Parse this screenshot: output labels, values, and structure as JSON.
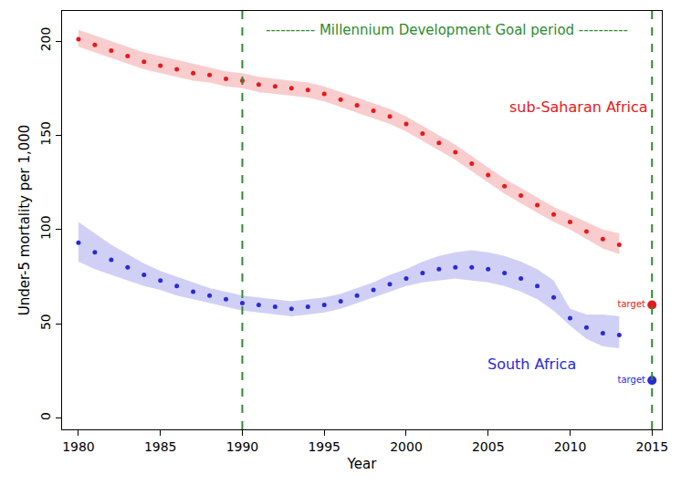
{
  "chart_data": {
    "type": "scatter",
    "marker": "circle",
    "grid": false,
    "x_label": "Year",
    "y_label": "Under-5 mortality per 1,000",
    "xlim": [
      1979,
      2015.6
    ],
    "xticks": [
      1980,
      1985,
      1990,
      1995,
      2000,
      2005,
      2010,
      2015
    ],
    "ylim": [
      -6,
      216
    ],
    "yticks": [
      0,
      50,
      100,
      150,
      200
    ],
    "x": [
      1980,
      1981,
      1982,
      1983,
      1984,
      1985,
      1986,
      1987,
      1988,
      1989,
      1990,
      1991,
      1992,
      1993,
      1994,
      1995,
      1996,
      1997,
      1998,
      1999,
      2000,
      2001,
      2002,
      2003,
      2004,
      2005,
      2006,
      2007,
      2008,
      2009,
      2010,
      2011,
      2012,
      2013
    ],
    "period": {
      "label": "---------- Millennium Development Goal period ----------",
      "start": 1990,
      "end": 2015,
      "color": "#2e8b2e",
      "line_style": "dash"
    },
    "series": [
      {
        "name": "sub-Saharan Africa",
        "color": "#e41a1c",
        "values": [
          201,
          198,
          195,
          192,
          189,
          187,
          185,
          183,
          182,
          180,
          179,
          177,
          176,
          175,
          174,
          172,
          169,
          166,
          163,
          160,
          156,
          151,
          146,
          141,
          135,
          129,
          123,
          118,
          113,
          108,
          104,
          99,
          95,
          92
        ],
        "upper": [
          206,
          203,
          200,
          197,
          194,
          192,
          190,
          188,
          186,
          184,
          183,
          181,
          180,
          179,
          178,
          176,
          173,
          170,
          167,
          164,
          160,
          155,
          150,
          145,
          139,
          133,
          127,
          122,
          117,
          112,
          108,
          104,
          100,
          98
        ],
        "lower": [
          197,
          194,
          191,
          188,
          185,
          183,
          181,
          179,
          178,
          176,
          175,
          173,
          172,
          171,
          170,
          168,
          165,
          162,
          159,
          156,
          152,
          147,
          142,
          137,
          131,
          125,
          119,
          114,
          109,
          104,
          100,
          95,
          90,
          87
        ],
        "target": {
          "x": 2015,
          "value": 60,
          "label": "target"
        }
      },
      {
        "name": "South Africa",
        "color": "#2a2ad6",
        "values": [
          93,
          88,
          84,
          80,
          76,
          73,
          70,
          67,
          65,
          63,
          61,
          60,
          59,
          58,
          59,
          60,
          62,
          65,
          68,
          71,
          74,
          77,
          79,
          80,
          80,
          79,
          77,
          74,
          70,
          64,
          53,
          48,
          45,
          44
        ],
        "upper": [
          104,
          98,
          92,
          87,
          82,
          78,
          75,
          72,
          69,
          67,
          65,
          64,
          63,
          62,
          63,
          64,
          66,
          69,
          72,
          76,
          79,
          83,
          86,
          88,
          89,
          88,
          86,
          83,
          79,
          73,
          58,
          55,
          55,
          54
        ],
        "lower": [
          83,
          79,
          76,
          73,
          70,
          68,
          65,
          63,
          61,
          59,
          57,
          56,
          55,
          54,
          55,
          56,
          58,
          61,
          64,
          67,
          70,
          72,
          73,
          74,
          73,
          72,
          70,
          67,
          63,
          57,
          49,
          42,
          38,
          37
        ],
        "target": {
          "x": 2015,
          "value": 20,
          "label": "target"
        }
      }
    ]
  }
}
